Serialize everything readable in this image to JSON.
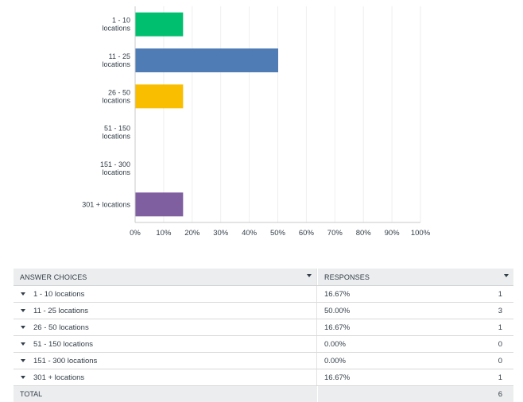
{
  "chart_data": {
    "type": "bar",
    "orientation": "horizontal",
    "categories": [
      [
        "1 - 10",
        "locations"
      ],
      [
        "11 - 25",
        "locations"
      ],
      [
        "26 - 50",
        "locations"
      ],
      [
        "51 - 150",
        "locations"
      ],
      [
        "151 - 300",
        "locations"
      ],
      [
        "301 + locations"
      ]
    ],
    "values": [
      16.67,
      50.0,
      16.67,
      0.0,
      0.0,
      16.67
    ],
    "colors": [
      "#00bf6f",
      "#507cb6",
      "#f9be00",
      "#6bc8cd",
      "#ff8b4f",
      "#7f5fa0"
    ],
    "xlim": [
      0,
      100
    ],
    "x_ticks": [
      "0%",
      "10%",
      "20%",
      "30%",
      "40%",
      "50%",
      "60%",
      "70%",
      "80%",
      "90%",
      "100%"
    ],
    "grid": true
  },
  "table": {
    "headers": {
      "choices": "ANSWER CHOICES",
      "responses": "RESPONSES"
    },
    "rows": [
      {
        "label": "1 - 10 locations",
        "percent": "16.67%",
        "count": "1"
      },
      {
        "label": "11 - 25 locations",
        "percent": "50.00%",
        "count": "3"
      },
      {
        "label": "26 - 50 locations",
        "percent": "16.67%",
        "count": "1"
      },
      {
        "label": "51 - 150 locations",
        "percent": "0.00%",
        "count": "0"
      },
      {
        "label": "151 - 300 locations",
        "percent": "0.00%",
        "count": "0"
      },
      {
        "label": "301 + locations",
        "percent": "16.67%",
        "count": "1"
      }
    ],
    "total": {
      "label": "TOTAL",
      "count": "6"
    }
  }
}
